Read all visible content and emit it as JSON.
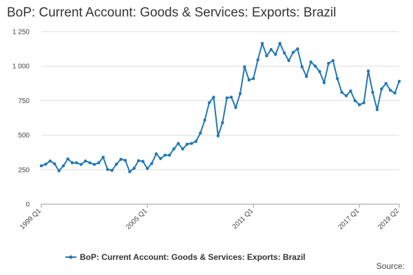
{
  "page": {
    "title": "BoP: Current Account: Goods & Services: Exports: Brazil",
    "source_label": "Source:"
  },
  "chart_data": {
    "type": "line",
    "title": "BoP: Current Account: Goods & Services: Exports: Brazil",
    "xlabel": "",
    "ylabel": "",
    "ylim": [
      0,
      1250
    ],
    "yticks": [
      0,
      250,
      500,
      750,
      1000,
      1250
    ],
    "ytick_labels": [
      "0",
      "250",
      "500",
      "750",
      "1 000",
      "1 250"
    ],
    "xtick_labels": [
      "1999 Q1",
      "2005 Q1",
      "2011 Q1",
      "2017 Q1",
      "2019 Q2"
    ],
    "xtick_indices": [
      0,
      24,
      48,
      72,
      81
    ],
    "grid": true,
    "legend_position": "bottom",
    "color": "#1f77b4",
    "series": [
      {
        "name": "BoP: Current Account: Goods & Services: Exports: Brazil",
        "values": [
          278,
          290,
          313,
          292,
          242,
          278,
          328,
          300,
          300,
          288,
          313,
          300,
          288,
          300,
          340,
          252,
          245,
          290,
          325,
          318,
          235,
          260,
          315,
          310,
          258,
          295,
          365,
          330,
          355,
          355,
          400,
          440,
          400,
          435,
          440,
          455,
          515,
          610,
          735,
          775,
          495,
          590,
          770,
          775,
          700,
          800,
          995,
          900,
          910,
          1045,
          1165,
          1075,
          1120,
          1085,
          1165,
          1095,
          1040,
          1100,
          1125,
          995,
          925,
          1030,
          1000,
          960,
          880,
          1020,
          1040,
          910,
          810,
          785,
          820,
          750,
          720,
          735,
          965,
          810,
          685,
          835,
          875,
          825,
          805,
          890
        ]
      }
    ]
  }
}
